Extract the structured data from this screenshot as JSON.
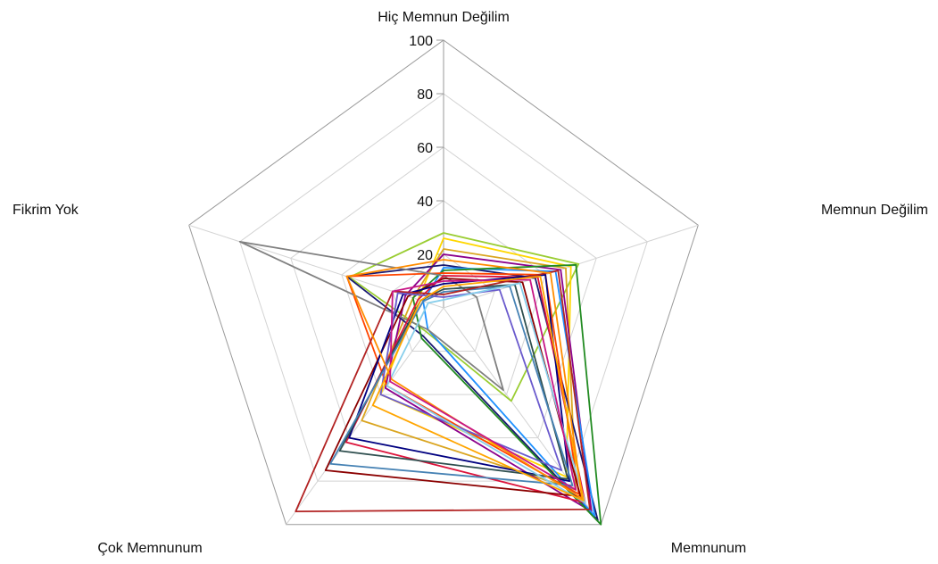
{
  "chart_data": {
    "type": "radar",
    "title": "",
    "axes": [
      "Hiç Memnun Değilim",
      "Memnun Değilim",
      "Memnunum",
      "Çok Memnunum",
      "Fikrim Yok"
    ],
    "rlim": [
      0,
      100
    ],
    "ticks": [
      "20",
      "40",
      "60",
      "80",
      "100"
    ],
    "tick_values": [
      20,
      40,
      60,
      80,
      100
    ],
    "grid": true,
    "legend": "none",
    "series": [
      {
        "color": "#9acd32",
        "values": [
          28,
          53,
          43,
          11,
          37
        ]
      },
      {
        "color": "#ffd700",
        "values": [
          26,
          50,
          78,
          40,
          10
        ]
      },
      {
        "color": "#daa520",
        "values": [
          22,
          48,
          84,
          52,
          12
        ]
      },
      {
        "color": "#8b008b",
        "values": [
          20,
          46,
          94,
          37,
          15
        ]
      },
      {
        "color": "#191970",
        "values": [
          16,
          36,
          98,
          13,
          38
        ]
      },
      {
        "color": "#1e90ff",
        "values": [
          15,
          44,
          96,
          10,
          8
        ]
      },
      {
        "color": "#228b22",
        "values": [
          14,
          52,
          100,
          14,
          12
        ]
      },
      {
        "color": "#ff4500",
        "values": [
          13,
          40,
          86,
          36,
          38
        ]
      },
      {
        "color": "#808080",
        "values": [
          12,
          13,
          38,
          10,
          80
        ]
      },
      {
        "color": "#dc143c",
        "values": [
          12,
          37,
          90,
          62,
          10
        ]
      },
      {
        "color": "#8b0000",
        "values": [
          11,
          31,
          87,
          75,
          14
        ]
      },
      {
        "color": "#000080",
        "values": [
          9,
          40,
          80,
          60,
          16
        ]
      },
      {
        "color": "#2f4f4f",
        "values": [
          7,
          28,
          79,
          66,
          9
        ]
      },
      {
        "color": "#4682b4",
        "values": [
          6,
          26,
          82,
          72,
          8
        ]
      },
      {
        "color": "#b22222",
        "values": [
          5,
          45,
          93,
          94,
          20
        ]
      },
      {
        "color": "#6a5acd",
        "values": [
          4,
          22,
          75,
          40,
          18
        ]
      },
      {
        "color": "#87ceeb",
        "values": [
          3,
          30,
          90,
          36,
          6
        ]
      },
      {
        "color": "#ff8c00",
        "values": [
          18,
          42,
          88,
          33,
          38
        ]
      },
      {
        "color": "#c71585",
        "values": [
          10,
          34,
          84,
          34,
          20
        ]
      },
      {
        "color": "#ffa500",
        "values": [
          8,
          38,
          89,
          45,
          9
        ]
      }
    ]
  }
}
